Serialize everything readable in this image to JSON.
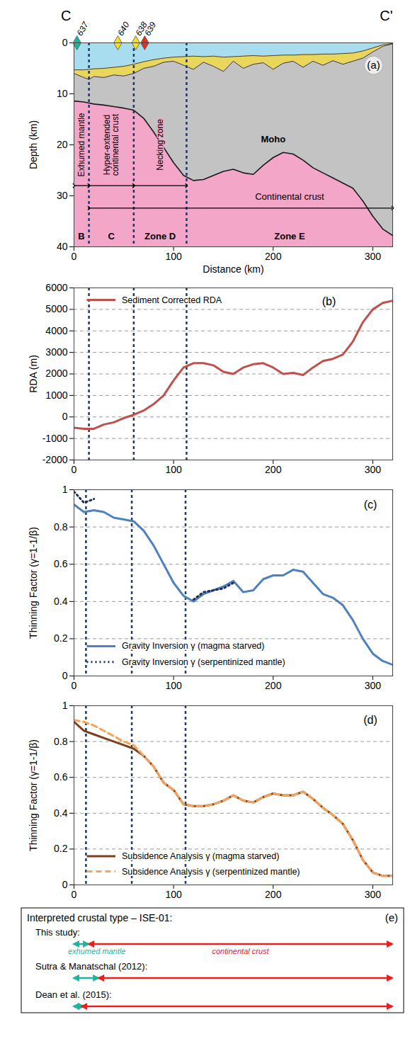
{
  "chart_data": [
    {
      "type": "area",
      "panel_label": "(a)",
      "title_left": "C",
      "title_right": "C'",
      "x_label": "Distance (km)",
      "y_label": "Depth (km)",
      "xlim": [
        0,
        320
      ],
      "xticks": [
        0,
        100,
        200,
        300
      ],
      "ylim": [
        0,
        40
      ],
      "yticks": [
        0,
        10,
        20,
        30,
        40
      ],
      "color": "#f4a6c8",
      "x": [
        0,
        10,
        15,
        20,
        30,
        40,
        50,
        60,
        70,
        80,
        90,
        100,
        110,
        120,
        130,
        140,
        150,
        160,
        170,
        180,
        190,
        200,
        210,
        220,
        230,
        240,
        250,
        260,
        270,
        280,
        290,
        300,
        310,
        320
      ],
      "layers": [
        {
          "color": "#a8ddf0",
          "values": [
            5.3,
            5.3,
            5.2,
            5.1,
            5.0,
            4.8,
            4.6,
            4.2,
            3.7,
            3.3,
            3.0,
            2.8,
            2.7,
            2.6,
            2.7,
            2.6,
            2.8,
            2.7,
            2.6,
            2.5,
            2.6,
            2.5,
            2.4,
            2.4,
            2.3,
            2.3,
            2.2,
            2.2,
            2.1,
            2.0,
            1.6,
            1.0,
            0.4,
            0.1
          ]
        },
        {
          "color": "#e9d75c",
          "values": [
            6.0,
            6.8,
            7.2,
            6.6,
            6.8,
            6.3,
            6.5,
            6.0,
            5.0,
            4.6,
            3.8,
            3.6,
            4.4,
            5.2,
            3.8,
            4.6,
            5.6,
            3.6,
            5.0,
            4.2,
            3.9,
            5.2,
            4.0,
            3.6,
            4.8,
            3.6,
            4.4,
            3.5,
            4.2,
            3.6,
            3.0,
            1.8,
            0.7,
            0.2
          ]
        },
        {
          "color": "#c3c3c3",
          "values": [
            11.4,
            11.6,
            11.8,
            12.0,
            12.2,
            12.5,
            12.8,
            13.2,
            14.8,
            17.5,
            20.5,
            23.5,
            26.0,
            27.0,
            26.8,
            26.0,
            25.2,
            24.8,
            25.5,
            25.8,
            24.0,
            22.5,
            21.5,
            21.8,
            23.0,
            24.5,
            25.5,
            26.5,
            27.5,
            28.5,
            31.0,
            34.0,
            36.5,
            37.8
          ]
        }
      ],
      "boundaries": [
        15,
        60,
        113
      ],
      "zone_names": [
        "Exhumed mantle",
        "Hyper-extended continental crust",
        "Necking zone"
      ],
      "zone_letters": [
        "B",
        "C",
        "Zone D",
        "Zone E"
      ],
      "crust_label": "Continental crust",
      "annotations": [
        {
          "text": "Moho",
          "x": 200,
          "y": 19
        }
      ],
      "wells": {
        "x": [
          3,
          44,
          62,
          71
        ],
        "labels": [
          "637",
          "640",
          "638",
          "639"
        ],
        "colors": [
          "#1fb59a",
          "#f5e020",
          "#f5e020",
          "#e0301e"
        ]
      }
    },
    {
      "type": "line",
      "panel_label": "(b)",
      "y_label": "RDA (m)",
      "xlim": [
        0,
        320
      ],
      "xticks": [
        0,
        100,
        200,
        300
      ],
      "ylim": [
        -2000,
        6000
      ],
      "yticks": [
        -2000,
        -1000,
        0,
        1000,
        2000,
        3000,
        4000,
        5000,
        6000
      ],
      "grid": true,
      "legend": "top-left",
      "boundaries": [
        15,
        60,
        113
      ],
      "x": [
        0,
        10,
        20,
        30,
        40,
        50,
        60,
        70,
        80,
        90,
        100,
        110,
        120,
        130,
        140,
        150,
        160,
        170,
        180,
        190,
        200,
        210,
        220,
        230,
        240,
        250,
        260,
        270,
        280,
        290,
        300,
        310,
        320
      ],
      "series": [
        {
          "name": "Sediment Corrected RDA",
          "color": "#c0504d",
          "line_style": "solid",
          "values": [
            -500,
            -550,
            -550,
            -350,
            -250,
            -50,
            100,
            300,
            600,
            1000,
            1700,
            2300,
            2500,
            2500,
            2400,
            2100,
            2000,
            2300,
            2450,
            2500,
            2300,
            2000,
            2050,
            1950,
            2300,
            2600,
            2700,
            2900,
            3500,
            4400,
            5000,
            5300,
            5400
          ]
        }
      ]
    },
    {
      "type": "line",
      "panel_label": "(c)",
      "y_label": "Thinning Factor (γ=1-1/β)",
      "xlim": [
        0,
        320
      ],
      "xticks": [
        0,
        100,
        200,
        300
      ],
      "ylim": [
        0,
        1
      ],
      "yticks": [
        0,
        0.2,
        0.4,
        0.6,
        0.8,
        1
      ],
      "grid": true,
      "legend": "bottom-left",
      "boundaries": [
        12,
        58,
        112
      ],
      "x": [
        0,
        10,
        20,
        30,
        40,
        50,
        60,
        70,
        80,
        90,
        100,
        110,
        120,
        130,
        140,
        150,
        160,
        170,
        180,
        190,
        200,
        210,
        220,
        230,
        240,
        250,
        260,
        270,
        280,
        290,
        300,
        310,
        320
      ],
      "series": [
        {
          "name": "Gravity Inversion γ (magma starved)",
          "color": "#4f81bd",
          "line_style": "solid",
          "values": [
            0.92,
            0.88,
            0.89,
            0.88,
            0.85,
            0.84,
            0.83,
            0.78,
            0.7,
            0.6,
            0.5,
            0.43,
            0.4,
            0.44,
            0.46,
            0.48,
            0.51,
            0.45,
            0.46,
            0.52,
            0.54,
            0.54,
            0.57,
            0.56,
            0.5,
            0.44,
            0.42,
            0.38,
            0.3,
            0.2,
            0.12,
            0.08,
            0.06
          ]
        },
        {
          "name": "Gravity Inversion γ (serpentinized mantle)",
          "color": "#1f2f5c",
          "line_style": "dotted",
          "values": [
            0.99,
            0.93,
            0.95,
            null,
            null,
            null,
            null,
            null,
            null,
            null,
            null,
            null,
            0.41,
            0.45,
            0.46,
            0.47,
            0.5,
            null,
            null,
            null,
            null,
            null,
            null,
            null,
            null,
            null,
            null,
            null,
            null,
            null,
            null,
            null,
            null
          ]
        }
      ]
    },
    {
      "type": "line",
      "panel_label": "(d)",
      "y_label": "Thinning Factor (γ=1-1/β)",
      "xlim": [
        0,
        320
      ],
      "xticks": [
        0,
        100,
        200,
        300
      ],
      "ylim": [
        0,
        1
      ],
      "yticks": [
        0,
        0.2,
        0.4,
        0.6,
        0.8,
        1
      ],
      "grid": true,
      "legend": "bottom-left",
      "boundaries": [
        12,
        58,
        112
      ],
      "x": [
        0,
        10,
        20,
        30,
        40,
        50,
        60,
        70,
        80,
        90,
        100,
        110,
        120,
        130,
        140,
        150,
        160,
        170,
        180,
        190,
        200,
        210,
        220,
        230,
        240,
        250,
        260,
        270,
        280,
        290,
        300,
        310,
        320
      ],
      "series": [
        {
          "name": "Subsidence Analysis γ (magma starved)",
          "color": "#7f3f1a",
          "line_style": "solid",
          "values": [
            0.91,
            0.86,
            0.84,
            0.82,
            0.8,
            0.78,
            0.76,
            0.72,
            0.66,
            0.57,
            0.53,
            0.45,
            0.44,
            0.44,
            0.45,
            0.47,
            0.5,
            0.47,
            0.46,
            0.49,
            0.51,
            0.5,
            0.5,
            0.52,
            0.48,
            0.43,
            0.39,
            0.34,
            0.25,
            0.14,
            0.07,
            0.05,
            0.05
          ]
        },
        {
          "name": "Subsidence Analysis γ (serpentinized mantle)",
          "color": "#f5a55a",
          "line_style": "dashed",
          "values": [
            0.92,
            0.91,
            0.89,
            0.86,
            0.83,
            0.8,
            0.78,
            0.72,
            0.66,
            0.57,
            0.53,
            0.45,
            0.44,
            0.44,
            0.45,
            0.47,
            0.5,
            0.47,
            0.46,
            0.49,
            0.51,
            0.5,
            0.5,
            0.52,
            0.48,
            0.43,
            0.39,
            0.34,
            0.25,
            0.14,
            0.07,
            0.05,
            0.05
          ]
        }
      ]
    }
  ],
  "crustal_type_panel": {
    "panel_label": "(e)",
    "title": "Interpreted crustal type – ISE-01:",
    "exhumed_color": "#1fb59a",
    "crust_color": "#e8201e",
    "rows": [
      {
        "source": "This study:",
        "exhumed_mantle": [
          0,
          15
        ],
        "continental_crust": [
          15,
          320
        ],
        "exhumed_label": "exhumed mantle",
        "crust_label": "continental crust"
      },
      {
        "source": "Sutra & Manatschal (2012):",
        "exhumed_mantle": [
          0,
          25
        ],
        "continental_crust": [
          25,
          320
        ]
      },
      {
        "source": "Dean et al. (2015):",
        "exhumed_mantle": [
          0,
          10
        ],
        "continental_crust": [
          8,
          320
        ]
      }
    ]
  }
}
